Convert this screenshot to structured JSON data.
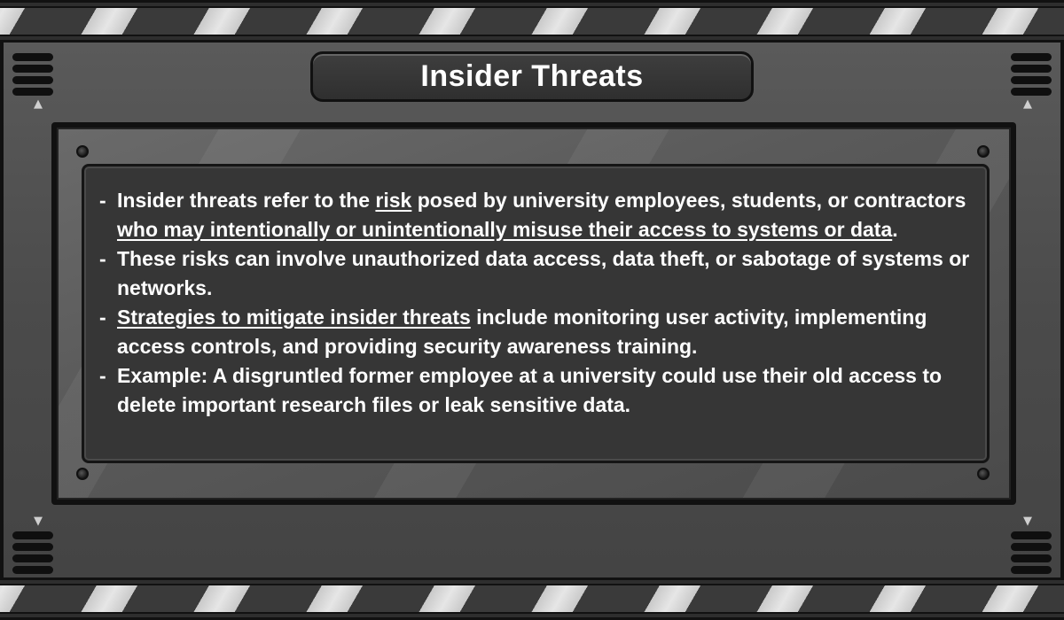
{
  "title": "Insider Threats",
  "bullets": [
    {
      "dash": "-",
      "t1": "Insider threats refer to the ",
      "u1": "risk",
      "t2": " posed by university employees, students, or contractors ",
      "u2": "who may intentionally or unintentionally misuse their access to systems or data",
      "t3": "."
    },
    {
      "dash": "-",
      "text": "These risks can involve unauthorized data access, data theft, or sabotage of systems or networks."
    },
    {
      "dash": "-",
      "u1": "Strategies to mitigate insider threats",
      "t1": " include monitoring user activity, implementing access controls, and providing security awareness training."
    },
    {
      "dash": "-",
      "text": "Example: A disgruntled former employee at a university could use their old access to delete important research files or leak sensitive data."
    }
  ],
  "icons": {
    "arrow_up": "▲",
    "arrow_down": "▼"
  },
  "colors": {
    "text": "#ffffff",
    "screen": "#363636",
    "panel": "#4f4f4f"
  }
}
